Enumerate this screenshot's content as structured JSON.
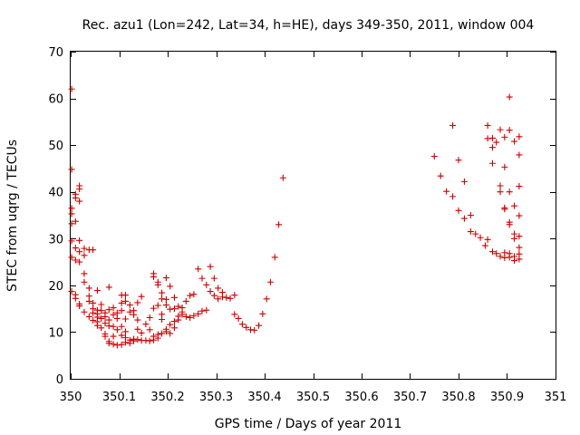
{
  "colors": {
    "marker": "#cc0000",
    "axis": "#000000",
    "background": "#ffffff"
  },
  "chart_data": {
    "type": "scatter",
    "title": "Rec. azu1 (Lon=242, Lat=34, h=HE), days 349-350, 2011, window 004",
    "xlabel": "GPS time / Days of year 2011",
    "ylabel": "STEC from uqrg / TECUs",
    "xlim": [
      350,
      351
    ],
    "ylim": [
      0,
      70
    ],
    "xticks": [
      350,
      350.1,
      350.2,
      350.3,
      350.4,
      350.5,
      350.6,
      350.7,
      350.8,
      350.9,
      351
    ],
    "xtick_labels": [
      "350",
      "350.1",
      "350.2",
      "350.3",
      "350.4",
      "350.5",
      "350.6",
      "350.7",
      "350.8",
      "350.9",
      "351"
    ],
    "yticks": [
      0,
      10,
      20,
      30,
      40,
      50,
      60,
      70
    ],
    "ytick_labels": [
      "0",
      "10",
      "20",
      "30",
      "40",
      "50",
      "60",
      "70"
    ],
    "grid": false,
    "marker": "+",
    "series": [
      {
        "name": "STEC",
        "points": [
          [
            350.002,
            62.0
          ],
          [
            350.002,
            44.8
          ],
          [
            350.002,
            36.5
          ],
          [
            350.002,
            35.3
          ],
          [
            350.002,
            33.2
          ],
          [
            350.002,
            29.5
          ],
          [
            350.002,
            26.0
          ],
          [
            350.002,
            18.7
          ],
          [
            350.01,
            39.5
          ],
          [
            350.01,
            38.7
          ],
          [
            350.01,
            33.7
          ],
          [
            350.01,
            28.0
          ],
          [
            350.01,
            25.4
          ],
          [
            350.01,
            18.0
          ],
          [
            350.01,
            17.2
          ],
          [
            350.018,
            41.3
          ],
          [
            350.018,
            40.6
          ],
          [
            350.018,
            38.0
          ],
          [
            350.018,
            29.6
          ],
          [
            350.018,
            27.2
          ],
          [
            350.018,
            25.0
          ],
          [
            350.018,
            16.0
          ],
          [
            350.018,
            15.6
          ],
          [
            350.028,
            27.9
          ],
          [
            350.028,
            26.4
          ],
          [
            350.028,
            22.5
          ],
          [
            350.028,
            20.7
          ],
          [
            350.028,
            14.3
          ],
          [
            350.038,
            27.6
          ],
          [
            350.038,
            19.4
          ],
          [
            350.038,
            17.7
          ],
          [
            350.038,
            16.6
          ],
          [
            350.038,
            13.3
          ],
          [
            350.046,
            27.6
          ],
          [
            350.046,
            16.2
          ],
          [
            350.046,
            15.0
          ],
          [
            350.046,
            14.1
          ],
          [
            350.046,
            12.5
          ],
          [
            350.055,
            18.9
          ],
          [
            350.055,
            14.7
          ],
          [
            350.055,
            13.9
          ],
          [
            350.055,
            13.2
          ],
          [
            350.055,
            12.2
          ],
          [
            350.055,
            11.4
          ],
          [
            350.063,
            15.9
          ],
          [
            350.063,
            14.6
          ],
          [
            350.063,
            12.9
          ],
          [
            350.063,
            10.9
          ],
          [
            350.071,
            14.1
          ],
          [
            350.071,
            13.3
          ],
          [
            350.071,
            11.9
          ],
          [
            350.071,
            9.6
          ],
          [
            350.071,
            9.1
          ],
          [
            350.079,
            19.6
          ],
          [
            350.079,
            14.8
          ],
          [
            350.079,
            12.6
          ],
          [
            350.079,
            11.3
          ],
          [
            350.079,
            8.0
          ],
          [
            350.079,
            7.6
          ],
          [
            350.088,
            15.2
          ],
          [
            350.088,
            13.7
          ],
          [
            350.088,
            11.2
          ],
          [
            350.088,
            9.1
          ],
          [
            350.088,
            7.4
          ],
          [
            350.096,
            14.1
          ],
          [
            350.096,
            12.9
          ],
          [
            350.096,
            10.5
          ],
          [
            350.096,
            7.2
          ],
          [
            350.105,
            17.9
          ],
          [
            350.105,
            16.2
          ],
          [
            350.105,
            14.6
          ],
          [
            350.105,
            11.2
          ],
          [
            350.105,
            9.3
          ],
          [
            350.105,
            7.3
          ],
          [
            350.113,
            17.9
          ],
          [
            350.113,
            16.6
          ],
          [
            350.113,
            12.8
          ],
          [
            350.113,
            10.1
          ],
          [
            350.113,
            8.8
          ],
          [
            350.113,
            7.8
          ],
          [
            350.122,
            15.8
          ],
          [
            350.122,
            14.3
          ],
          [
            350.122,
            8.3
          ],
          [
            350.122,
            7.6
          ],
          [
            350.13,
            14.6
          ],
          [
            350.13,
            13.7
          ],
          [
            350.13,
            8.5
          ],
          [
            350.13,
            8.1
          ],
          [
            350.138,
            16.3
          ],
          [
            350.138,
            12.6
          ],
          [
            350.138,
            10.6
          ],
          [
            350.138,
            8.4
          ],
          [
            350.146,
            17.6
          ],
          [
            350.146,
            9.8
          ],
          [
            350.146,
            8.2
          ],
          [
            350.155,
            11.7
          ],
          [
            350.155,
            8.2
          ],
          [
            350.163,
            13.1
          ],
          [
            350.163,
            10.5
          ],
          [
            350.163,
            8.1
          ],
          [
            350.171,
            22.5
          ],
          [
            350.171,
            21.8
          ],
          [
            350.171,
            15.1
          ],
          [
            350.171,
            9.1
          ],
          [
            350.171,
            8.3
          ],
          [
            350.18,
            20.7
          ],
          [
            350.18,
            20.1
          ],
          [
            350.18,
            15.7
          ],
          [
            350.18,
            9.5
          ],
          [
            350.18,
            8.7
          ],
          [
            350.188,
            18.4
          ],
          [
            350.188,
            17.1
          ],
          [
            350.188,
            13.8
          ],
          [
            350.188,
            12.7
          ],
          [
            350.188,
            9.7
          ],
          [
            350.197,
            21.6
          ],
          [
            350.197,
            17.0
          ],
          [
            350.197,
            15.8
          ],
          [
            350.197,
            10.6
          ],
          [
            350.197,
            10.1
          ],
          [
            350.205,
            19.8
          ],
          [
            350.205,
            14.9
          ],
          [
            350.205,
            11.6
          ],
          [
            350.205,
            9.7
          ],
          [
            350.214,
            17.4
          ],
          [
            350.214,
            15.0
          ],
          [
            350.214,
            12.3
          ],
          [
            350.214,
            10.9
          ],
          [
            350.222,
            15.5
          ],
          [
            350.222,
            13.4
          ],
          [
            350.222,
            12.6
          ],
          [
            350.23,
            15.2
          ],
          [
            350.23,
            14.3
          ],
          [
            350.23,
            13.8
          ],
          [
            350.238,
            16.6
          ],
          [
            350.238,
            13.3
          ],
          [
            350.246,
            17.8
          ],
          [
            350.246,
            13.1
          ],
          [
            350.254,
            18.1
          ],
          [
            350.254,
            13.5
          ],
          [
            350.263,
            23.5
          ],
          [
            350.263,
            13.9
          ],
          [
            350.271,
            21.5
          ],
          [
            350.271,
            14.5
          ],
          [
            350.28,
            20.1
          ],
          [
            350.28,
            14.7
          ],
          [
            350.288,
            24.0
          ],
          [
            350.288,
            18.7
          ],
          [
            350.296,
            21.5
          ],
          [
            350.296,
            17.8
          ],
          [
            350.304,
            19.4
          ],
          [
            350.304,
            17.1
          ],
          [
            350.313,
            18.5
          ],
          [
            350.313,
            17.5
          ],
          [
            350.321,
            17.4
          ],
          [
            350.329,
            17.2
          ],
          [
            350.338,
            17.9
          ],
          [
            350.338,
            13.8
          ],
          [
            350.346,
            12.9
          ],
          [
            350.354,
            11.7
          ],
          [
            350.362,
            11.0
          ],
          [
            350.371,
            10.5
          ],
          [
            350.379,
            10.4
          ],
          [
            350.388,
            11.4
          ],
          [
            350.396,
            13.9
          ],
          [
            350.404,
            17.1
          ],
          [
            350.412,
            20.7
          ],
          [
            350.421,
            26.0
          ],
          [
            350.429,
            33.0
          ],
          [
            350.438,
            43.0
          ],
          [
            350.75,
            47.6
          ],
          [
            350.763,
            43.4
          ],
          [
            350.775,
            40.1
          ],
          [
            350.788,
            54.2
          ],
          [
            350.788,
            39.0
          ],
          [
            350.8,
            46.8
          ],
          [
            350.8,
            36.0
          ],
          [
            350.812,
            42.2
          ],
          [
            350.812,
            34.3
          ],
          [
            350.825,
            35.0
          ],
          [
            350.825,
            31.5
          ],
          [
            350.835,
            31.0
          ],
          [
            350.845,
            30.2
          ],
          [
            350.855,
            28.5
          ],
          [
            350.86,
            54.2
          ],
          [
            350.86,
            51.4
          ],
          [
            350.86,
            29.8
          ],
          [
            350.87,
            51.5
          ],
          [
            350.87,
            49.5
          ],
          [
            350.87,
            46.1
          ],
          [
            350.87,
            27.2
          ],
          [
            350.878,
            50.6
          ],
          [
            350.878,
            26.8
          ],
          [
            350.886,
            53.3
          ],
          [
            350.886,
            41.3
          ],
          [
            350.886,
            40.0
          ],
          [
            350.886,
            26.2
          ],
          [
            350.895,
            51.7
          ],
          [
            350.895,
            45.3
          ],
          [
            350.895,
            36.6
          ],
          [
            350.895,
            36.3
          ],
          [
            350.895,
            27.0
          ],
          [
            350.895,
            25.9
          ],
          [
            350.905,
            60.3
          ],
          [
            350.905,
            53.2
          ],
          [
            350.905,
            40.0
          ],
          [
            350.905,
            33.5
          ],
          [
            350.905,
            33.0
          ],
          [
            350.905,
            26.8
          ],
          [
            350.905,
            26.0
          ],
          [
            350.915,
            50.8
          ],
          [
            350.915,
            37.0
          ],
          [
            350.915,
            31.0
          ],
          [
            350.915,
            30.0
          ],
          [
            350.915,
            26.2
          ],
          [
            350.915,
            25.3
          ],
          [
            350.925,
            51.8
          ],
          [
            350.925,
            47.9
          ],
          [
            350.925,
            41.2
          ],
          [
            350.925,
            34.9
          ],
          [
            350.925,
            30.5
          ],
          [
            350.925,
            28.1
          ],
          [
            350.925,
            26.7
          ],
          [
            350.925,
            25.6
          ]
        ]
      }
    ]
  }
}
